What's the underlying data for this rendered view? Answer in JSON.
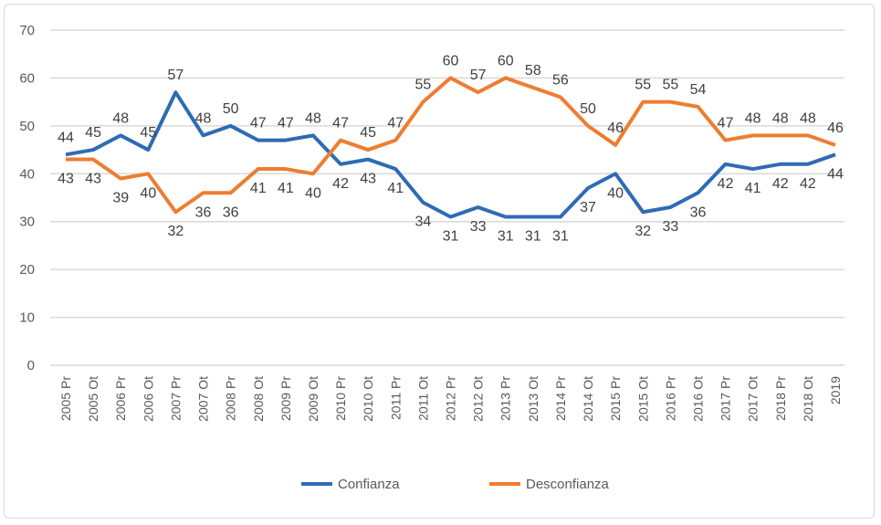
{
  "chart_data": {
    "type": "line",
    "title": "",
    "xlabel": "",
    "ylabel": "",
    "ylim": [
      0,
      70
    ],
    "yticks": [
      0,
      10,
      20,
      30,
      40,
      50,
      60,
      70
    ],
    "grid": true,
    "legend_position": "bottom",
    "categories": [
      "2005 Pr",
      "2005 Ot",
      "2006 Pr",
      "2006 Ot",
      "2007 Pr",
      "2007 Ot",
      "2008 Pr",
      "2008 Ot",
      "2009 Pr",
      "2009 Ot",
      "2010 Pr",
      "2010 Ot",
      "2011 Pr",
      "2011 Ot",
      "2012 Pr",
      "2012 Ot",
      "2013 Pr",
      "2013 Ot",
      "2014 Pr",
      "2014 Ot",
      "2015 Pr",
      "2015 Ot",
      "2016 Pr",
      "2016 Ot",
      "2017 Pr",
      "2017 Ot",
      "2018 Pr",
      "2018 Ot",
      "2019"
    ],
    "series": [
      {
        "name": "Confianza",
        "color": "#2e6bb5",
        "values": [
          44,
          45,
          48,
          45,
          57,
          48,
          50,
          47,
          47,
          48,
          42,
          43,
          41,
          34,
          31,
          33,
          31,
          31,
          31,
          37,
          40,
          32,
          33,
          36,
          42,
          41,
          42,
          42,
          44
        ]
      },
      {
        "name": "Desconfianza",
        "color": "#ee7d31",
        "values": [
          43,
          43,
          39,
          40,
          32,
          36,
          36,
          41,
          41,
          40,
          47,
          45,
          47,
          55,
          60,
          57,
          60,
          58,
          56,
          50,
          46,
          55,
          55,
          54,
          47,
          48,
          48,
          48,
          46
        ]
      }
    ]
  }
}
